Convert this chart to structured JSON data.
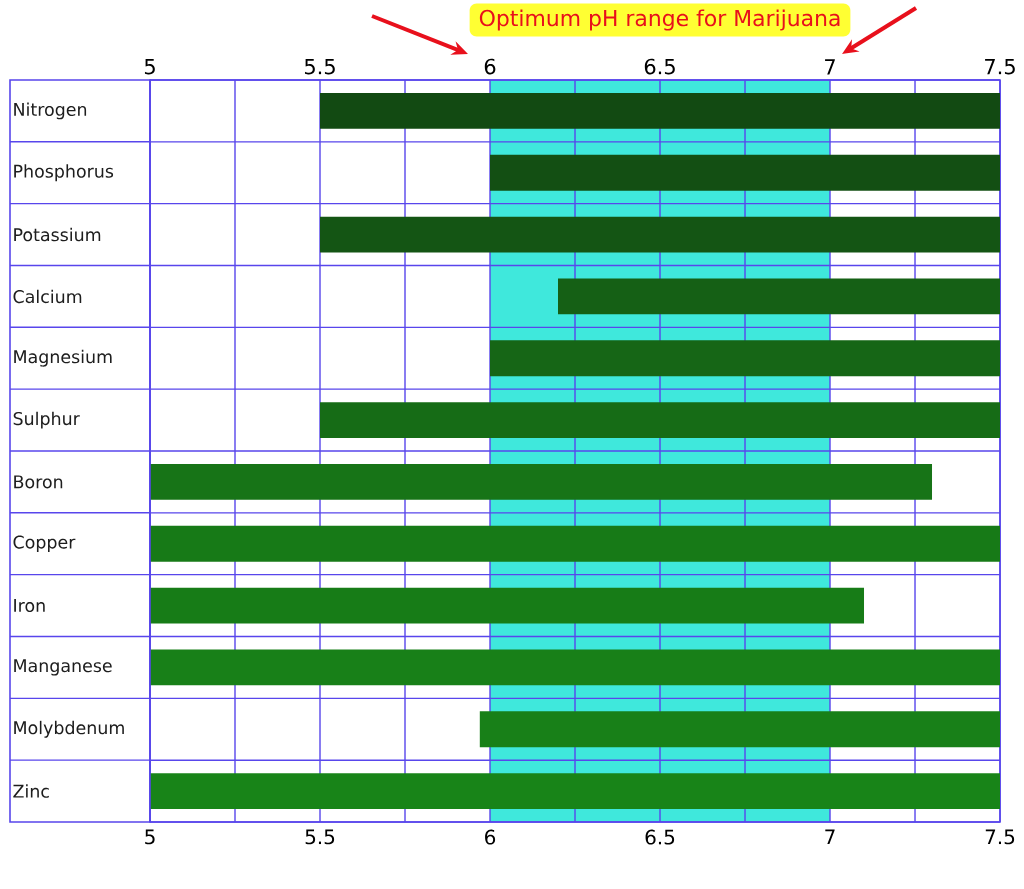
{
  "chart_data": {
    "type": "bar",
    "orientation": "horizontal",
    "categories": [
      "Nitrogen",
      "Phosphorus",
      "Potassium",
      "Calcium",
      "Magnesium",
      "Sulphur",
      "Boron",
      "Copper",
      "Iron",
      "Manganese",
      "Molybdenum",
      "Zinc"
    ],
    "base": [
      5.5,
      6,
      5.5,
      6.2,
      6,
      5.5,
      5,
      5,
      5,
      5,
      5.97,
      5
    ],
    "values": [
      2,
      1.5,
      2,
      1.3,
      1.5,
      2,
      2.3,
      2.5,
      2.1,
      2.5,
      1.53,
      2.5
    ],
    "colors": [
      "#124a12",
      "#134f13",
      "#145514",
      "#156015",
      "#166616",
      "#166c16",
      "#177417",
      "#177a17",
      "#177c17",
      "#188018",
      "#188018",
      "#188418"
    ],
    "xlim": [
      5,
      7.5
    ],
    "xticks": [
      5,
      {
        "value": 5.25,
        "label": null
      },
      5.5,
      {
        "value": 5.75,
        "label": null
      },
      6,
      {
        "value": 6.25,
        "label": null
      },
      6.5,
      {
        "value": 6.75,
        "label": null
      },
      7,
      {
        "value": 7.25,
        "label": null
      },
      7.5
    ],
    "x2lim": [
      5,
      7.5
    ],
    "x2ticks": [
      5,
      5.5,
      6,
      6.5,
      7,
      7.5
    ],
    "grid": true,
    "bands": [
      {
        "axis": "x",
        "from": 6,
        "to": 7,
        "label": "Optimum pH range for Marijuana",
        "color": "#3fe8dc"
      }
    ]
  }
}
